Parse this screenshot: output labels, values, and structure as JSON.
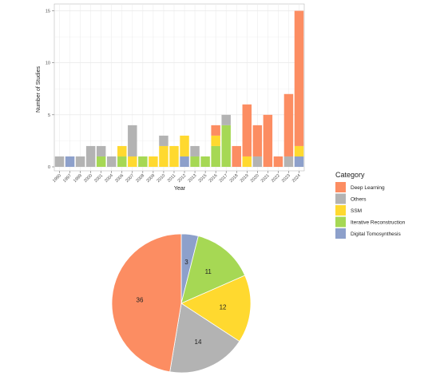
{
  "chart_data": [
    {
      "type": "bar",
      "stacked": true,
      "xlabel": "Year",
      "ylabel": "Number of Studies",
      "ylim": [
        0,
        15.5
      ],
      "y_ticks": [
        0,
        5,
        10,
        15
      ],
      "grid": true,
      "categories": [
        "1990",
        "1997",
        "1999",
        "2000",
        "2001",
        "2004",
        "2006",
        "2007",
        "2008",
        "2009",
        "2010",
        "2011",
        "2012",
        "2013",
        "2015",
        "2016",
        "2017",
        "2018",
        "2019",
        "2020",
        "2021",
        "2022",
        "2023",
        "2024"
      ],
      "series": [
        {
          "name": "Digital Tomosynthesis",
          "color": "#8DA0CB",
          "values": [
            0,
            1,
            0,
            0,
            0,
            0,
            0,
            0,
            0,
            0,
            0,
            0,
            1,
            0,
            0,
            0,
            0,
            0,
            0,
            0,
            0,
            0,
            0,
            1
          ]
        },
        {
          "name": "Iterative Reconstruction",
          "color": "#A6D854",
          "values": [
            0,
            0,
            0,
            0,
            1,
            0,
            1,
            0,
            1,
            0,
            0,
            0,
            0,
            1,
            1,
            2,
            4,
            0,
            0,
            0,
            0,
            0,
            0,
            0
          ]
        },
        {
          "name": "SSM",
          "color": "#FFD92F",
          "values": [
            0,
            0,
            0,
            0,
            0,
            0,
            1,
            1,
            0,
            1,
            2,
            2,
            2,
            0,
            0,
            1,
            0,
            0,
            1,
            0,
            0,
            0,
            0,
            1
          ]
        },
        {
          "name": "Others",
          "color": "#B3B3B3",
          "values": [
            1,
            0,
            1,
            2,
            1,
            1,
            0,
            3,
            0,
            0,
            1,
            0,
            0,
            1,
            0,
            0,
            1,
            0,
            0,
            1,
            0,
            0,
            1,
            0
          ]
        },
        {
          "name": "Deep Learning",
          "color": "#FC8D62",
          "values": [
            0,
            0,
            0,
            0,
            0,
            0,
            0,
            0,
            0,
            0,
            0,
            0,
            0,
            0,
            0,
            1,
            0,
            2,
            5,
            3,
            5,
            1,
            6,
            13
          ]
        }
      ]
    },
    {
      "type": "pie",
      "slices": [
        {
          "label": "3",
          "value": 3,
          "color": "#8DA0CB"
        },
        {
          "label": "11",
          "value": 11,
          "color": "#A6D854"
        },
        {
          "label": "12",
          "value": 12,
          "color": "#FFD92F"
        },
        {
          "label": "14",
          "value": 14,
          "color": "#B3B3B3"
        },
        {
          "label": "36",
          "value": 36,
          "color": "#FC8D62"
        }
      ]
    }
  ],
  "legend": {
    "title": "Category",
    "items": [
      {
        "label": "Deep Learning",
        "color": "#FC8D62"
      },
      {
        "label": "Others",
        "color": "#B3B3B3"
      },
      {
        "label": "SSM",
        "color": "#FFD92F"
      },
      {
        "label": "Iterative Reconstruction",
        "color": "#A6D854"
      },
      {
        "label": "Digital Tomosynthesis",
        "color": "#8DA0CB"
      }
    ]
  }
}
